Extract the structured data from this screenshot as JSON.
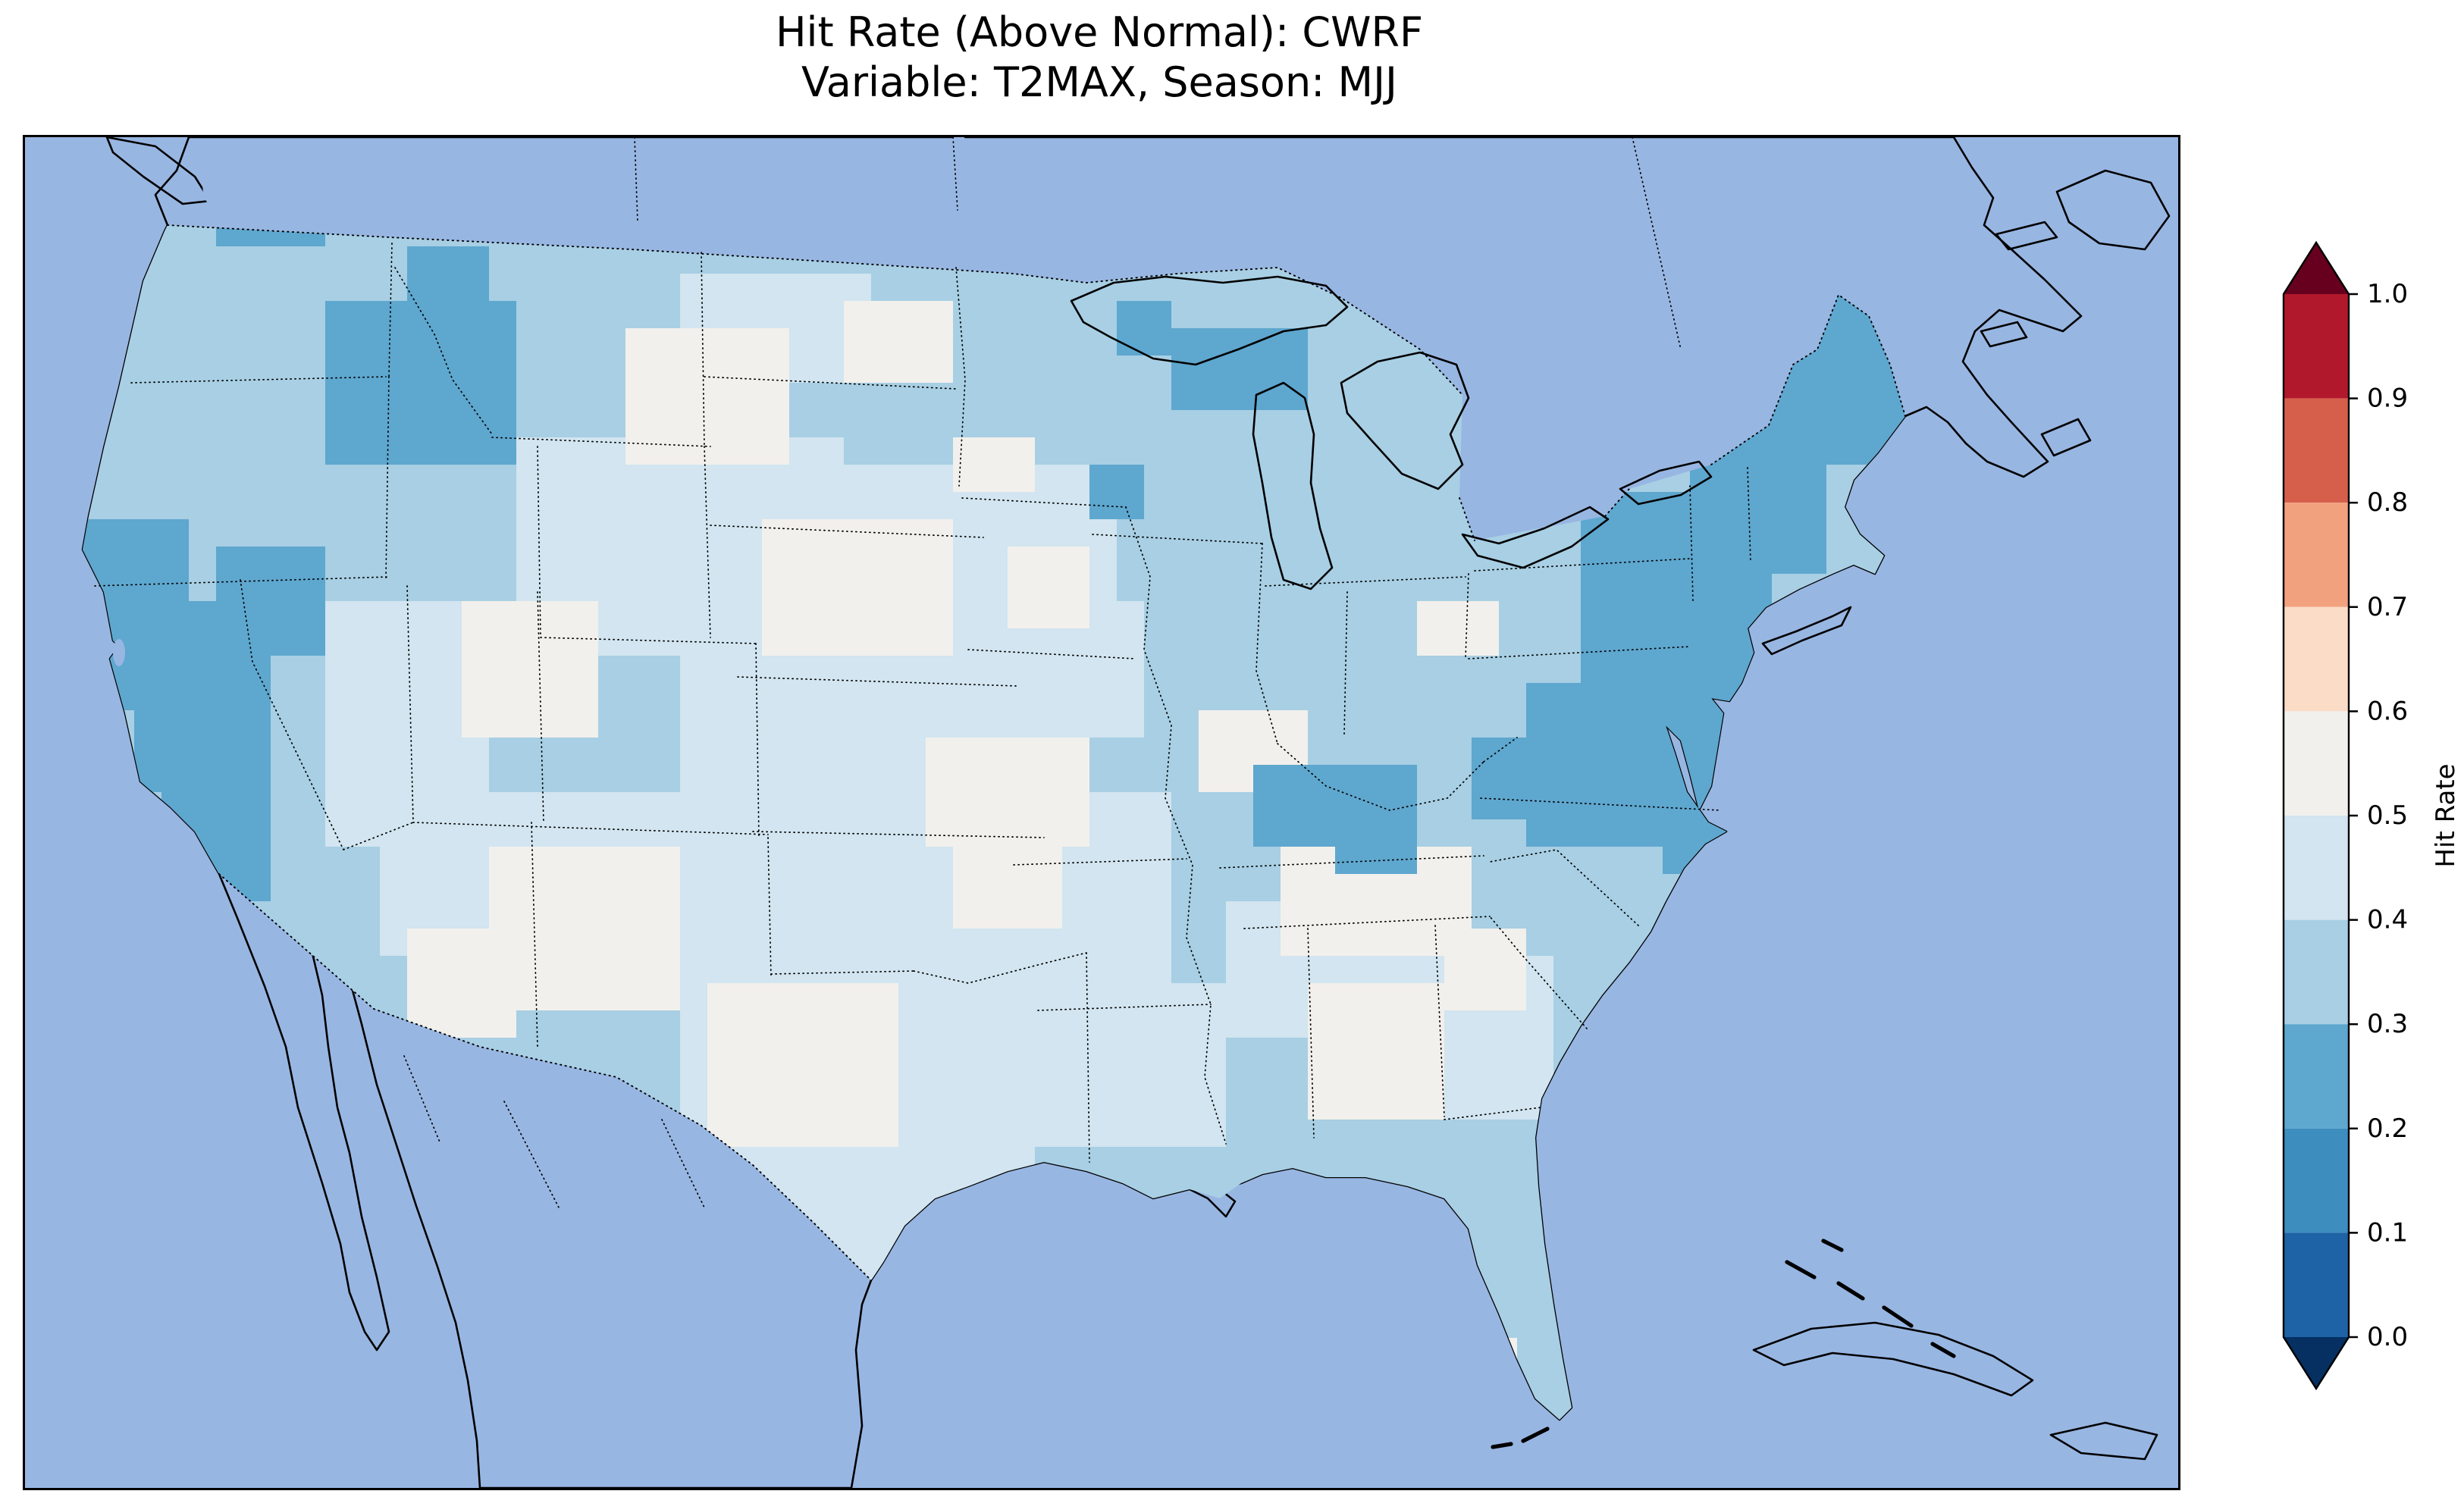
{
  "figure": {
    "title_line1": "Hit Rate (Above Normal): CWRF",
    "title_line2": "Variable: T2MAX, Season: MJJ"
  },
  "chart_data": {
    "type": "heatmap",
    "title": "Hit Rate (Above Normal): CWRF",
    "subtitle": "Variable: T2MAX, Season: MJJ",
    "region": "Continental United States",
    "colorbar": {
      "label": "Hit Rate",
      "orientation": "vertical",
      "extend": "both",
      "ticks": [
        "0.0",
        "0.1",
        "0.2",
        "0.3",
        "0.4",
        "0.5",
        "0.6",
        "0.7",
        "0.8",
        "0.9",
        "1.0"
      ],
      "bin_edges": [
        0.0,
        0.1,
        0.2,
        0.3,
        0.4,
        0.5,
        0.6,
        0.7,
        0.8,
        0.9,
        1.0
      ],
      "bin_colors": [
        "#1e63a5",
        "#3d8dbf",
        "#5ea7cf",
        "#a8cfe4",
        "#d2e5f0",
        "#f2f0ec",
        "#fbdcc7",
        "#f2a17f",
        "#d65f4c",
        "#b2182b"
      ],
      "under_color": "#053061",
      "over_color": "#67001f"
    },
    "map": {
      "ocean_color": "#98b6e2",
      "land_color": "#efefdb",
      "value_range_observed": [
        0.2,
        0.6
      ],
      "base_value": 0.35,
      "patches": [
        [
          324,
          198,
          216,
          144,
          0.45
        ],
        [
          432,
          90,
          126,
          72,
          0.45
        ],
        [
          540,
          216,
          180,
          126,
          0.45
        ],
        [
          432,
          306,
          198,
          144,
          0.45
        ],
        [
          198,
          306,
          108,
          162,
          0.45
        ],
        [
          234,
          432,
          162,
          108,
          0.45
        ],
        [
          396,
          432,
          252,
          144,
          0.45
        ],
        [
          432,
          558,
          234,
          144,
          0.45
        ],
        [
          504,
          666,
          126,
          126,
          0.45
        ],
        [
          612,
          432,
          144,
          126,
          0.45
        ],
        [
          666,
          558,
          126,
          108,
          0.45
        ],
        [
          612,
          306,
          126,
          90,
          0.45
        ],
        [
          792,
          504,
          144,
          90,
          0.45
        ],
        [
          900,
          540,
          108,
          108,
          0.45
        ],
        [
          396,
          126,
          108,
          90,
          0.55
        ],
        [
          486,
          252,
          126,
          90,
          0.55
        ],
        [
          288,
          306,
          90,
          90,
          0.55
        ],
        [
          306,
          468,
          126,
          108,
          0.55
        ],
        [
          450,
          558,
          126,
          108,
          0.55
        ],
        [
          594,
          396,
          108,
          72,
          0.55
        ],
        [
          828,
          468,
          126,
          72,
          0.55
        ],
        [
          846,
          558,
          90,
          90,
          0.55
        ],
        [
          774,
          378,
          72,
          54,
          0.55
        ],
        [
          540,
          108,
          72,
          54,
          0.55
        ],
        [
          612,
          198,
          54,
          36,
          0.55
        ],
        [
          648,
          270,
          54,
          54,
          0.55
        ],
        [
          918,
          306,
          54,
          36,
          0.55
        ],
        [
          612,
          468,
          72,
          54,
          0.55
        ],
        [
          252,
          522,
          72,
          72,
          0.55
        ],
        [
          936,
          522,
          54,
          54,
          0.55
        ],
        [
          948,
          792,
          36,
          18,
          0.55
        ],
        [
          36,
          252,
          72,
          126,
          0.25
        ],
        [
          72,
          306,
          90,
          126,
          0.25
        ],
        [
          90,
          414,
          72,
          90,
          0.25
        ],
        [
          126,
          270,
          72,
          72,
          0.25
        ],
        [
          198,
          108,
          126,
          108,
          0.25
        ],
        [
          252,
          72,
          54,
          54,
          0.25
        ],
        [
          126,
          18,
          72,
          54,
          0.25
        ],
        [
          756,
          126,
          90,
          54,
          0.25
        ],
        [
          720,
          108,
          36,
          36,
          0.25
        ],
        [
          702,
          216,
          36,
          36,
          0.25
        ],
        [
          810,
          414,
          108,
          54,
          0.25
        ],
        [
          864,
          450,
          54,
          36,
          0.25
        ],
        [
          1134,
          90,
          108,
          126,
          0.25
        ],
        [
          1098,
          180,
          90,
          108,
          0.25
        ],
        [
          1026,
          234,
          108,
          72,
          0.25
        ],
        [
          1026,
          288,
          126,
          72,
          0.25
        ],
        [
          1098,
          342,
          72,
          72,
          0.25
        ],
        [
          990,
          360,
          144,
          108,
          0.25
        ],
        [
          1080,
          432,
          72,
          54,
          0.25
        ],
        [
          954,
          396,
          54,
          54,
          0.25
        ]
      ]
    }
  }
}
